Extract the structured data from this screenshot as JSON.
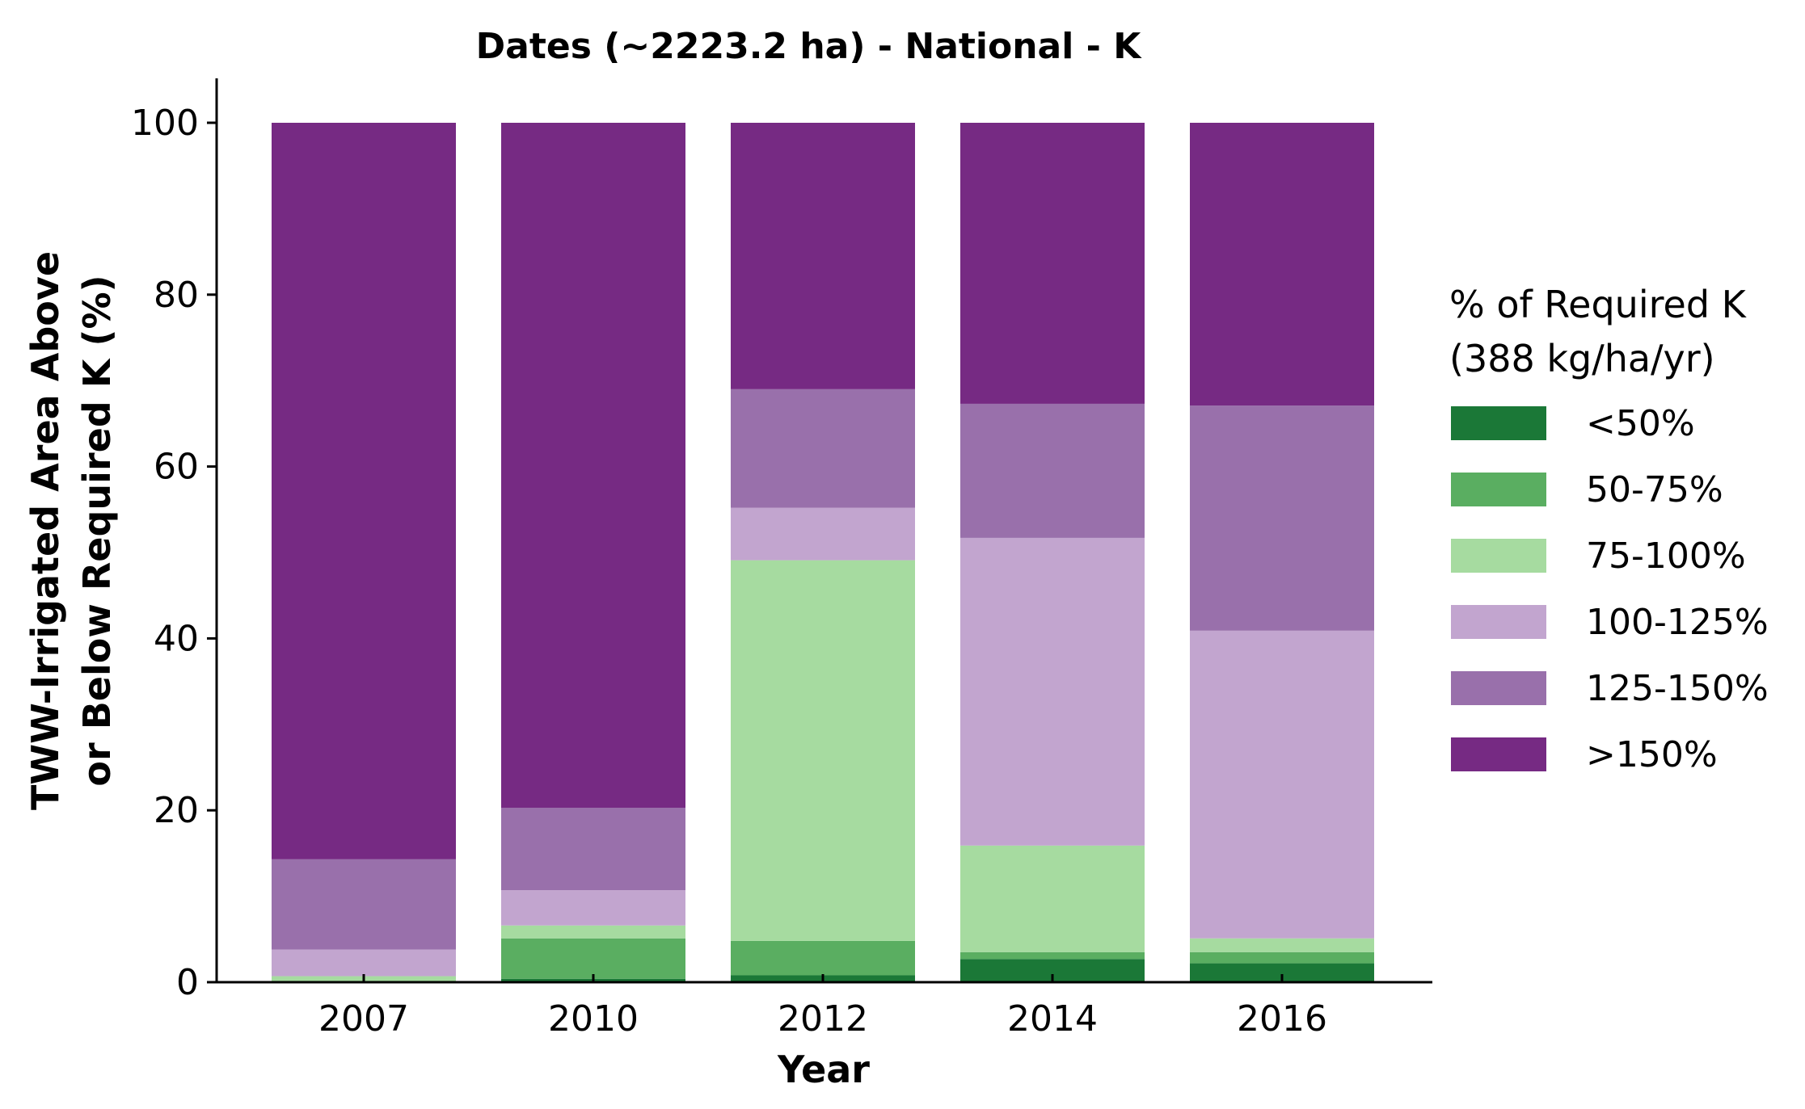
{
  "chart_data": {
    "type": "bar",
    "stacked": true,
    "title": "Dates (~2223.2 ha) - National - K",
    "xlabel": "Year",
    "ylabel_lines": [
      "TWW-Irrigated Area Above",
      "or Below Required K (%)"
    ],
    "ylim": [
      0,
      105
    ],
    "yticks": [
      0,
      20,
      40,
      60,
      80,
      100
    ],
    "categories": [
      "2007",
      "2010",
      "2012",
      "2014",
      "2016"
    ],
    "series": [
      {
        "name": "<50%",
        "color": "#1b7837",
        "values": [
          0.0,
          0.4,
          0.8,
          2.7,
          2.2
        ]
      },
      {
        "name": "50-75%",
        "color": "#5aae61",
        "values": [
          0.0,
          4.7,
          4.0,
          0.8,
          1.3
        ]
      },
      {
        "name": "75-100%",
        "color": "#a6dba0",
        "values": [
          0.7,
          1.5,
          44.3,
          12.4,
          1.6
        ]
      },
      {
        "name": "100-125%",
        "color": "#c2a5cf",
        "values": [
          3.1,
          4.1,
          6.1,
          35.8,
          35.8
        ]
      },
      {
        "name": "125-150%",
        "color": "#9970ab",
        "values": [
          10.5,
          9.6,
          13.8,
          15.6,
          26.2
        ]
      },
      {
        "name": ">150%",
        "color": "#762a83",
        "values": [
          85.7,
          79.7,
          31.0,
          32.7,
          32.9
        ]
      }
    ],
    "legend": {
      "title_lines": [
        "% of Required K",
        "(388 kg/ha/yr)"
      ],
      "placement": "right"
    },
    "grid": false
  }
}
